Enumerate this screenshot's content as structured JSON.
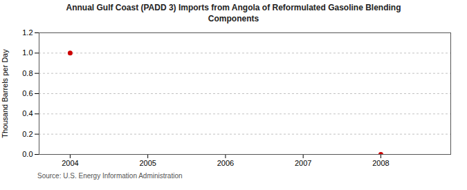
{
  "chart_data": {
    "type": "scatter",
    "title": "Annual Gulf Coast (PADD 3) Imports from Angola of Reformulated Gasoline Blending\nComponents",
    "ylabel": "Thousand Barrels per Day",
    "source": "Source: U.S. Energy Information Administration",
    "x": [
      2004,
      2008
    ],
    "values": [
      1.0,
      0.0
    ],
    "color": "#cc0000",
    "marker": "circle",
    "xlim": [
      2003.6,
      2008.9
    ],
    "xticks": [
      2004,
      2005,
      2006,
      2007,
      2008
    ],
    "ylim": [
      0.0,
      1.2
    ],
    "yticks": [
      {
        "value": 0.0,
        "label": "0.0"
      },
      0.2,
      0.4,
      0.6,
      0.8,
      {
        "value": 1.0,
        "label": "1.0"
      },
      1.2
    ],
    "grid": true
  }
}
